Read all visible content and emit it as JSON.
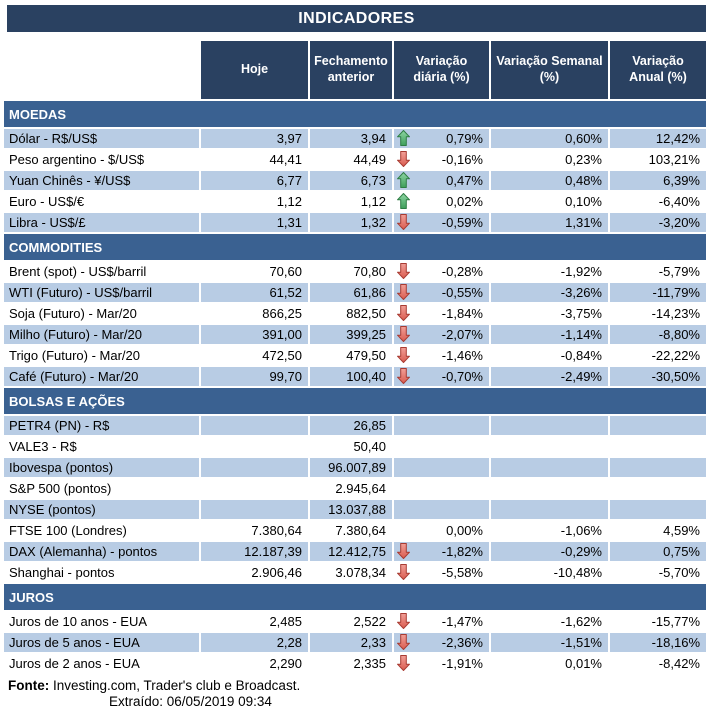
{
  "title": "INDICADORES",
  "columns": [
    "Hoje",
    "Fechamento anterior",
    "Variação diária (%)",
    "Variação Semanal (%)",
    "Variação Anual (%)"
  ],
  "colors": {
    "header_navy": "#2A4161",
    "section_blue": "#3A6191",
    "row_stripe": "#B8CCE4",
    "arrow_up_fill_top": "#8FD6A4",
    "arrow_up_fill_bottom": "#3E9E5B",
    "arrow_up_border": "#2E7D44",
    "arrow_down_fill_top": "#F2A098",
    "arrow_down_fill_bottom": "#D95C50",
    "arrow_down_border": "#A83B32"
  },
  "sections": [
    {
      "name": "MOEDAS",
      "first_row_shaded": true,
      "rows": [
        {
          "label": "Dólar - R$/US$",
          "hoje": "3,97",
          "fechamento": "3,94",
          "arrow": "up",
          "var_diaria": "0,79%",
          "var_semanal": "0,60%",
          "var_anual": "12,42%"
        },
        {
          "label": "Peso argentino - $/US$",
          "hoje": "44,41",
          "fechamento": "44,49",
          "arrow": "down",
          "var_diaria": "-0,16%",
          "var_semanal": "0,23%",
          "var_anual": "103,21%"
        },
        {
          "label": "Yuan Chinês - ¥/US$",
          "hoje": "6,77",
          "fechamento": "6,73",
          "arrow": "up",
          "var_diaria": "0,47%",
          "var_semanal": "0,48%",
          "var_anual": "6,39%"
        },
        {
          "label": "Euro - US$/€",
          "hoje": "1,12",
          "fechamento": "1,12",
          "arrow": "up",
          "var_diaria": "0,02%",
          "var_semanal": "0,10%",
          "var_anual": "-6,40%"
        },
        {
          "label": "Libra - US$/£",
          "hoje": "1,31",
          "fechamento": "1,32",
          "arrow": "down",
          "var_diaria": "-0,59%",
          "var_semanal": "1,31%",
          "var_anual": "-3,20%"
        }
      ]
    },
    {
      "name": "COMMODITIES",
      "first_row_shaded": false,
      "rows": [
        {
          "label": "Brent (spot) - US$/barril",
          "hoje": "70,60",
          "fechamento": "70,80",
          "arrow": "down",
          "var_diaria": "-0,28%",
          "var_semanal": "-1,92%",
          "var_anual": "-5,79%"
        },
        {
          "label": "WTI (Futuro) - US$/barril",
          "hoje": "61,52",
          "fechamento": "61,86",
          "arrow": "down",
          "var_diaria": "-0,55%",
          "var_semanal": "-3,26%",
          "var_anual": "-11,79%"
        },
        {
          "label": "Soja (Futuro) - Mar/20",
          "hoje": "866,25",
          "fechamento": "882,50",
          "arrow": "down",
          "var_diaria": "-1,84%",
          "var_semanal": "-3,75%",
          "var_anual": "-14,23%"
        },
        {
          "label": "Milho (Futuro) - Mar/20",
          "hoje": "391,00",
          "fechamento": "399,25",
          "arrow": "down",
          "var_diaria": "-2,07%",
          "var_semanal": "-1,14%",
          "var_anual": "-8,80%"
        },
        {
          "label": "Trigo (Futuro) - Mar/20",
          "hoje": "472,50",
          "fechamento": "479,50",
          "arrow": "down",
          "var_diaria": "-1,46%",
          "var_semanal": "-0,84%",
          "var_anual": "-22,22%"
        },
        {
          "label": "Café (Futuro) - Mar/20",
          "hoje": "99,70",
          "fechamento": "100,40",
          "arrow": "down",
          "var_diaria": "-0,70%",
          "var_semanal": "-2,49%",
          "var_anual": "-30,50%"
        }
      ]
    },
    {
      "name": "BOLSAS E AÇÕES",
      "first_row_shaded": true,
      "rows": [
        {
          "label": "PETR4 (PN) - R$",
          "hoje": "",
          "fechamento": "26,85",
          "arrow": "",
          "var_diaria": "",
          "var_semanal": "",
          "var_anual": ""
        },
        {
          "label": "VALE3 - R$",
          "hoje": "",
          "fechamento": "50,40",
          "arrow": "",
          "var_diaria": "",
          "var_semanal": "",
          "var_anual": ""
        },
        {
          "label": "Ibovespa (pontos)",
          "hoje": "",
          "fechamento": "96.007,89",
          "arrow": "",
          "var_diaria": "",
          "var_semanal": "",
          "var_anual": ""
        },
        {
          "label": "S&P 500 (pontos)",
          "hoje": "",
          "fechamento": "2.945,64",
          "arrow": "",
          "var_diaria": "",
          "var_semanal": "",
          "var_anual": ""
        },
        {
          "label": "NYSE (pontos)",
          "hoje": "",
          "fechamento": "13.037,88",
          "arrow": "",
          "var_diaria": "",
          "var_semanal": "",
          "var_anual": ""
        },
        {
          "label": "FTSE 100 (Londres)",
          "hoje": "7.380,64",
          "fechamento": "7.380,64",
          "arrow": "",
          "var_diaria": "0,00%",
          "var_semanal": "-1,06%",
          "var_anual": "4,59%"
        },
        {
          "label": "DAX (Alemanha) - pontos",
          "hoje": "12.187,39",
          "fechamento": "12.412,75",
          "arrow": "down",
          "var_diaria": "-1,82%",
          "var_semanal": "-0,29%",
          "var_anual": "0,75%"
        },
        {
          "label": "Shanghai - pontos",
          "hoje": "2.906,46",
          "fechamento": "3.078,34",
          "arrow": "down",
          "var_diaria": "-5,58%",
          "var_semanal": "-10,48%",
          "var_anual": "-5,70%"
        }
      ]
    },
    {
      "name": "JUROS",
      "first_row_shaded": false,
      "rows": [
        {
          "label": "Juros de 10 anos - EUA",
          "hoje": "2,485",
          "fechamento": "2,522",
          "arrow": "down",
          "var_diaria": "-1,47%",
          "var_semanal": "-1,62%",
          "var_anual": "-15,77%"
        },
        {
          "label": "Juros de 5 anos - EUA",
          "hoje": "2,28",
          "fechamento": "2,33",
          "arrow": "down",
          "var_diaria": "-2,36%",
          "var_semanal": "-1,51%",
          "var_anual": "-18,16%"
        },
        {
          "label": "Juros de 2 anos - EUA",
          "hoje": "2,290",
          "fechamento": "2,335",
          "arrow": "down",
          "var_diaria": "-1,91%",
          "var_semanal": "0,01%",
          "var_anual": "-8,42%"
        }
      ]
    }
  ],
  "footer": {
    "fonte_label": "Fonte:",
    "fonte_text": " Investing.com, Trader's club e Broadcast.",
    "extraido_label": "Extraído:",
    "extraido_value": " 06/05/2019 09:34"
  }
}
